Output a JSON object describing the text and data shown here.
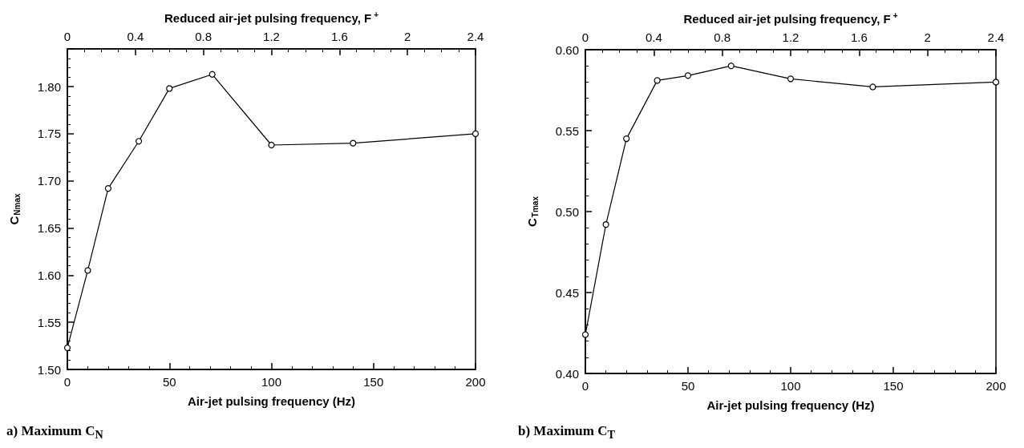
{
  "chart_data": [
    {
      "type": "line",
      "xlabel": "Air-jet pulsing frequency (Hz)",
      "x2label": "Reduced air-jet pulsing frequency, F$^{+}$",
      "ylabel": "C$_{Nmax}$",
      "annotations": [
        "a) Maximum C$_{N}$"
      ],
      "x": [
        0,
        10,
        20,
        35,
        50,
        71,
        100,
        140,
        200
      ],
      "series": [
        {
          "color": "#000000",
          "values": [
            1.523,
            1.605,
            1.692,
            1.742,
            1.798,
            1.813,
            1.738,
            1.74,
            1.75
          ]
        }
      ],
      "xlim": [
        0,
        200
      ],
      "xticks": [
        0,
        50,
        100,
        150,
        200
      ],
      "x2lim": [
        0,
        2.4
      ],
      "x2ticks": [
        0,
        0.4,
        0.8,
        1.2,
        1.6,
        2,
        2.4
      ],
      "ylim": [
        1.5,
        1.84
      ],
      "yticks": [
        {
          "value": 1.5,
          "label": "1.50"
        },
        {
          "value": 1.55,
          "label": "1.55"
        },
        {
          "value": 1.6,
          "label": "1.60"
        },
        {
          "value": 1.65,
          "label": "1.65"
        },
        {
          "value": 1.7,
          "label": "1.70"
        },
        {
          "value": 1.75,
          "label": "1.75"
        },
        {
          "value": 1.8,
          "label": "1.80"
        }
      ],
      "grid": false,
      "marker": "circle",
      "line_style": "solid"
    },
    {
      "type": "line",
      "xlabel": "Air-jet pulsing frequency (Hz)",
      "x2label": "Reduced air-jet pulsing frequency, F$^{+}$",
      "ylabel": "C$_{Tmax}$",
      "annotations": [
        "b) Maximum C$_{T}$"
      ],
      "x": [
        0,
        10,
        20,
        35,
        50,
        71,
        100,
        140,
        200
      ],
      "series": [
        {
          "color": "#000000",
          "values": [
            0.424,
            0.492,
            0.545,
            0.581,
            0.584,
            0.59,
            0.582,
            0.577,
            0.58
          ]
        }
      ],
      "xlim": [
        0,
        200
      ],
      "xticks": [
        0,
        50,
        100,
        150,
        200
      ],
      "x2lim": [
        0,
        2.4
      ],
      "x2ticks": [
        0,
        0.4,
        0.8,
        1.2,
        1.6,
        2,
        2.4
      ],
      "ylim": [
        0.4,
        0.6
      ],
      "yticks": [
        {
          "value": 0.4,
          "label": "0.40"
        },
        {
          "value": 0.45,
          "label": "0.45"
        },
        {
          "value": 0.5,
          "label": "0.50"
        },
        {
          "value": 0.55,
          "label": "0.55"
        },
        {
          "value": 0.6,
          "label": "0.60"
        }
      ],
      "grid": false,
      "marker": "circle",
      "line_style": "solid"
    }
  ]
}
